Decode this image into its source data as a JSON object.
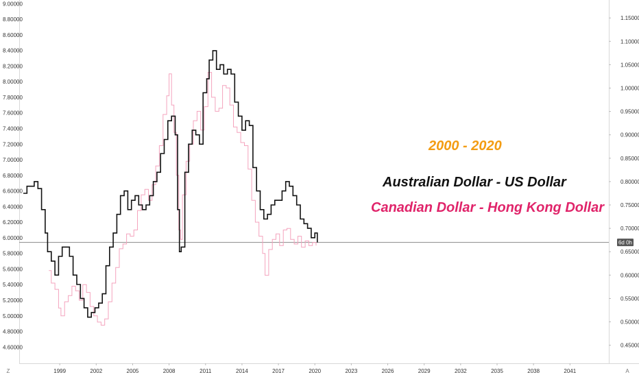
{
  "chart_data": {
    "type": "line",
    "annotations": {
      "period": "2000 - 2020",
      "series_a_title": "Australian Dollar - US Dollar",
      "series_b_title": "Canadian Dollar - Hong Kong Dollar"
    },
    "colors": {
      "period": "#f39c12",
      "series_a": "#111111",
      "series_b": "#f4a3bd",
      "series_b_title": "#e0246a",
      "price_line": "#888888",
      "badge": "#555555"
    },
    "left_axis": {
      "ylim": [
        4.48,
        9.02
      ],
      "ticks": [
        "9.00000",
        "8.80000",
        "8.60000",
        "8.40000",
        "8.20000",
        "8.00000",
        "7.80000",
        "7.60000",
        "7.40000",
        "7.20000",
        "7.00000",
        "6.80000",
        "6.60000",
        "6.40000",
        "6.20000",
        "6.00000",
        "5.80000",
        "5.60000",
        "5.40000",
        "5.20000",
        "5.00000",
        "4.80000",
        "4.60000"
      ]
    },
    "right_axis": {
      "ylim": [
        0.426,
        1.184
      ],
      "ticks": [
        "1.15000",
        "1.10000",
        "1.05000",
        "1.00000",
        "0.95000",
        "0.90000",
        "0.85000",
        "0.80000",
        "0.75000",
        "0.70000",
        "0.65000",
        "0.60000",
        "0.55000",
        "0.50000",
        "0.45000"
      ],
      "last_price_label": "6d 0h"
    },
    "x_axis": {
      "xlim": [
        1996.0,
        2044.2
      ],
      "ticks": [
        "1999",
        "2002",
        "2005",
        "2008",
        "2011",
        "2014",
        "2017",
        "2020",
        "2023",
        "2026",
        "2029",
        "2032",
        "2035",
        "2038",
        "2041"
      ]
    },
    "corner_labels": {
      "left": "Z",
      "right": "A"
    },
    "series": [
      {
        "axis": "right",
        "x": [
          1996.0,
          1996.3,
          1996.6,
          1996.9,
          1997.2,
          1997.5,
          1997.8,
          1998.0,
          1998.3,
          1998.6,
          1998.9,
          1999.2,
          1999.5,
          1999.8,
          2000.1,
          2000.4,
          2000.7,
          2001.0,
          2001.3,
          2001.6,
          2001.9,
          2002.2,
          2002.5,
          2002.8,
          2003.1,
          2003.4,
          2003.7,
          2004.0,
          2004.3,
          2004.6,
          2004.9,
          2005.2,
          2005.5,
          2005.8,
          2006.1,
          2006.4,
          2006.7,
          2007.0,
          2007.3,
          2007.6,
          2007.9,
          2008.2,
          2008.5,
          2008.7,
          2008.85,
          2009.0,
          2009.3,
          2009.6,
          2009.9,
          2010.2,
          2010.5,
          2010.8,
          2011.1,
          2011.3,
          2011.6,
          2011.9,
          2012.2,
          2012.5,
          2012.8,
          2013.1,
          2013.4,
          2013.7,
          2014.0,
          2014.3,
          2014.6,
          2014.9,
          2015.2,
          2015.5,
          2015.8,
          2016.1,
          2016.4,
          2016.7,
          2017.0,
          2017.3,
          2017.6,
          2017.9,
          2018.2,
          2018.5,
          2018.8,
          2019.1,
          2019.4,
          2019.7,
          2020.0,
          2020.2
        ],
        "y": [
          0.775,
          0.79,
          0.79,
          0.8,
          0.785,
          0.74,
          0.69,
          0.65,
          0.63,
          0.6,
          0.64,
          0.66,
          0.66,
          0.64,
          0.6,
          0.58,
          0.55,
          0.53,
          0.51,
          0.52,
          0.53,
          0.54,
          0.56,
          0.62,
          0.66,
          0.69,
          0.73,
          0.77,
          0.78,
          0.74,
          0.76,
          0.77,
          0.75,
          0.74,
          0.75,
          0.77,
          0.8,
          0.82,
          0.86,
          0.89,
          0.93,
          0.94,
          0.9,
          0.74,
          0.65,
          0.66,
          0.82,
          0.88,
          0.91,
          0.9,
          0.88,
          0.99,
          1.02,
          1.06,
          1.08,
          1.04,
          1.05,
          1.03,
          1.04,
          1.03,
          0.97,
          0.94,
          0.91,
          0.93,
          0.92,
          0.83,
          0.78,
          0.74,
          0.72,
          0.73,
          0.75,
          0.76,
          0.76,
          0.78,
          0.8,
          0.79,
          0.77,
          0.75,
          0.72,
          0.71,
          0.7,
          0.68,
          0.69,
          0.67
        ]
      },
      {
        "axis": "left",
        "x": [
          1998.1,
          1998.3,
          1998.6,
          1998.9,
          1999.1,
          1999.4,
          1999.7,
          2000.0,
          2000.3,
          2000.6,
          2000.9,
          2001.2,
          2001.5,
          2001.8,
          2002.1,
          2002.4,
          2002.7,
          2003.0,
          2003.3,
          2003.6,
          2003.9,
          2004.2,
          2004.5,
          2004.8,
          2005.1,
          2005.4,
          2005.7,
          2006.0,
          2006.3,
          2006.6,
          2006.9,
          2007.2,
          2007.5,
          2007.8,
          2008.0,
          2008.2,
          2008.4,
          2008.6,
          2008.8,
          2008.95,
          2009.1,
          2009.4,
          2009.7,
          2010.0,
          2010.3,
          2010.6,
          2010.9,
          2011.2,
          2011.5,
          2011.8,
          2012.1,
          2012.4,
          2012.7,
          2013.0,
          2013.3,
          2013.6,
          2013.9,
          2014.2,
          2014.5,
          2014.8,
          2015.1,
          2015.4,
          2015.7,
          2015.9,
          2016.2,
          2016.5,
          2016.8,
          2017.1,
          2017.4,
          2017.7,
          2018.0,
          2018.3,
          2018.6,
          2018.9,
          2019.2,
          2019.5,
          2019.8,
          2020.1
        ],
        "y": [
          5.58,
          5.42,
          5.34,
          5.1,
          5.0,
          5.18,
          5.26,
          5.38,
          5.32,
          5.2,
          5.4,
          5.3,
          5.12,
          5.0,
          4.92,
          4.88,
          4.96,
          5.18,
          5.42,
          5.62,
          5.86,
          5.92,
          6.05,
          6.02,
          6.1,
          6.35,
          6.55,
          6.62,
          6.48,
          6.68,
          6.92,
          7.18,
          7.58,
          7.82,
          8.1,
          7.7,
          7.35,
          6.8,
          6.1,
          5.98,
          6.55,
          6.98,
          7.2,
          7.5,
          7.62,
          7.38,
          7.68,
          8.12,
          7.8,
          7.62,
          7.66,
          7.95,
          7.92,
          7.7,
          7.42,
          7.35,
          7.22,
          7.18,
          6.88,
          6.48,
          6.2,
          6.02,
          5.8,
          5.52,
          5.85,
          5.98,
          6.05,
          5.9,
          6.1,
          6.12,
          5.98,
          5.92,
          6.02,
          5.88,
          5.96,
          5.9,
          5.94,
          5.9
        ]
      }
    ]
  }
}
